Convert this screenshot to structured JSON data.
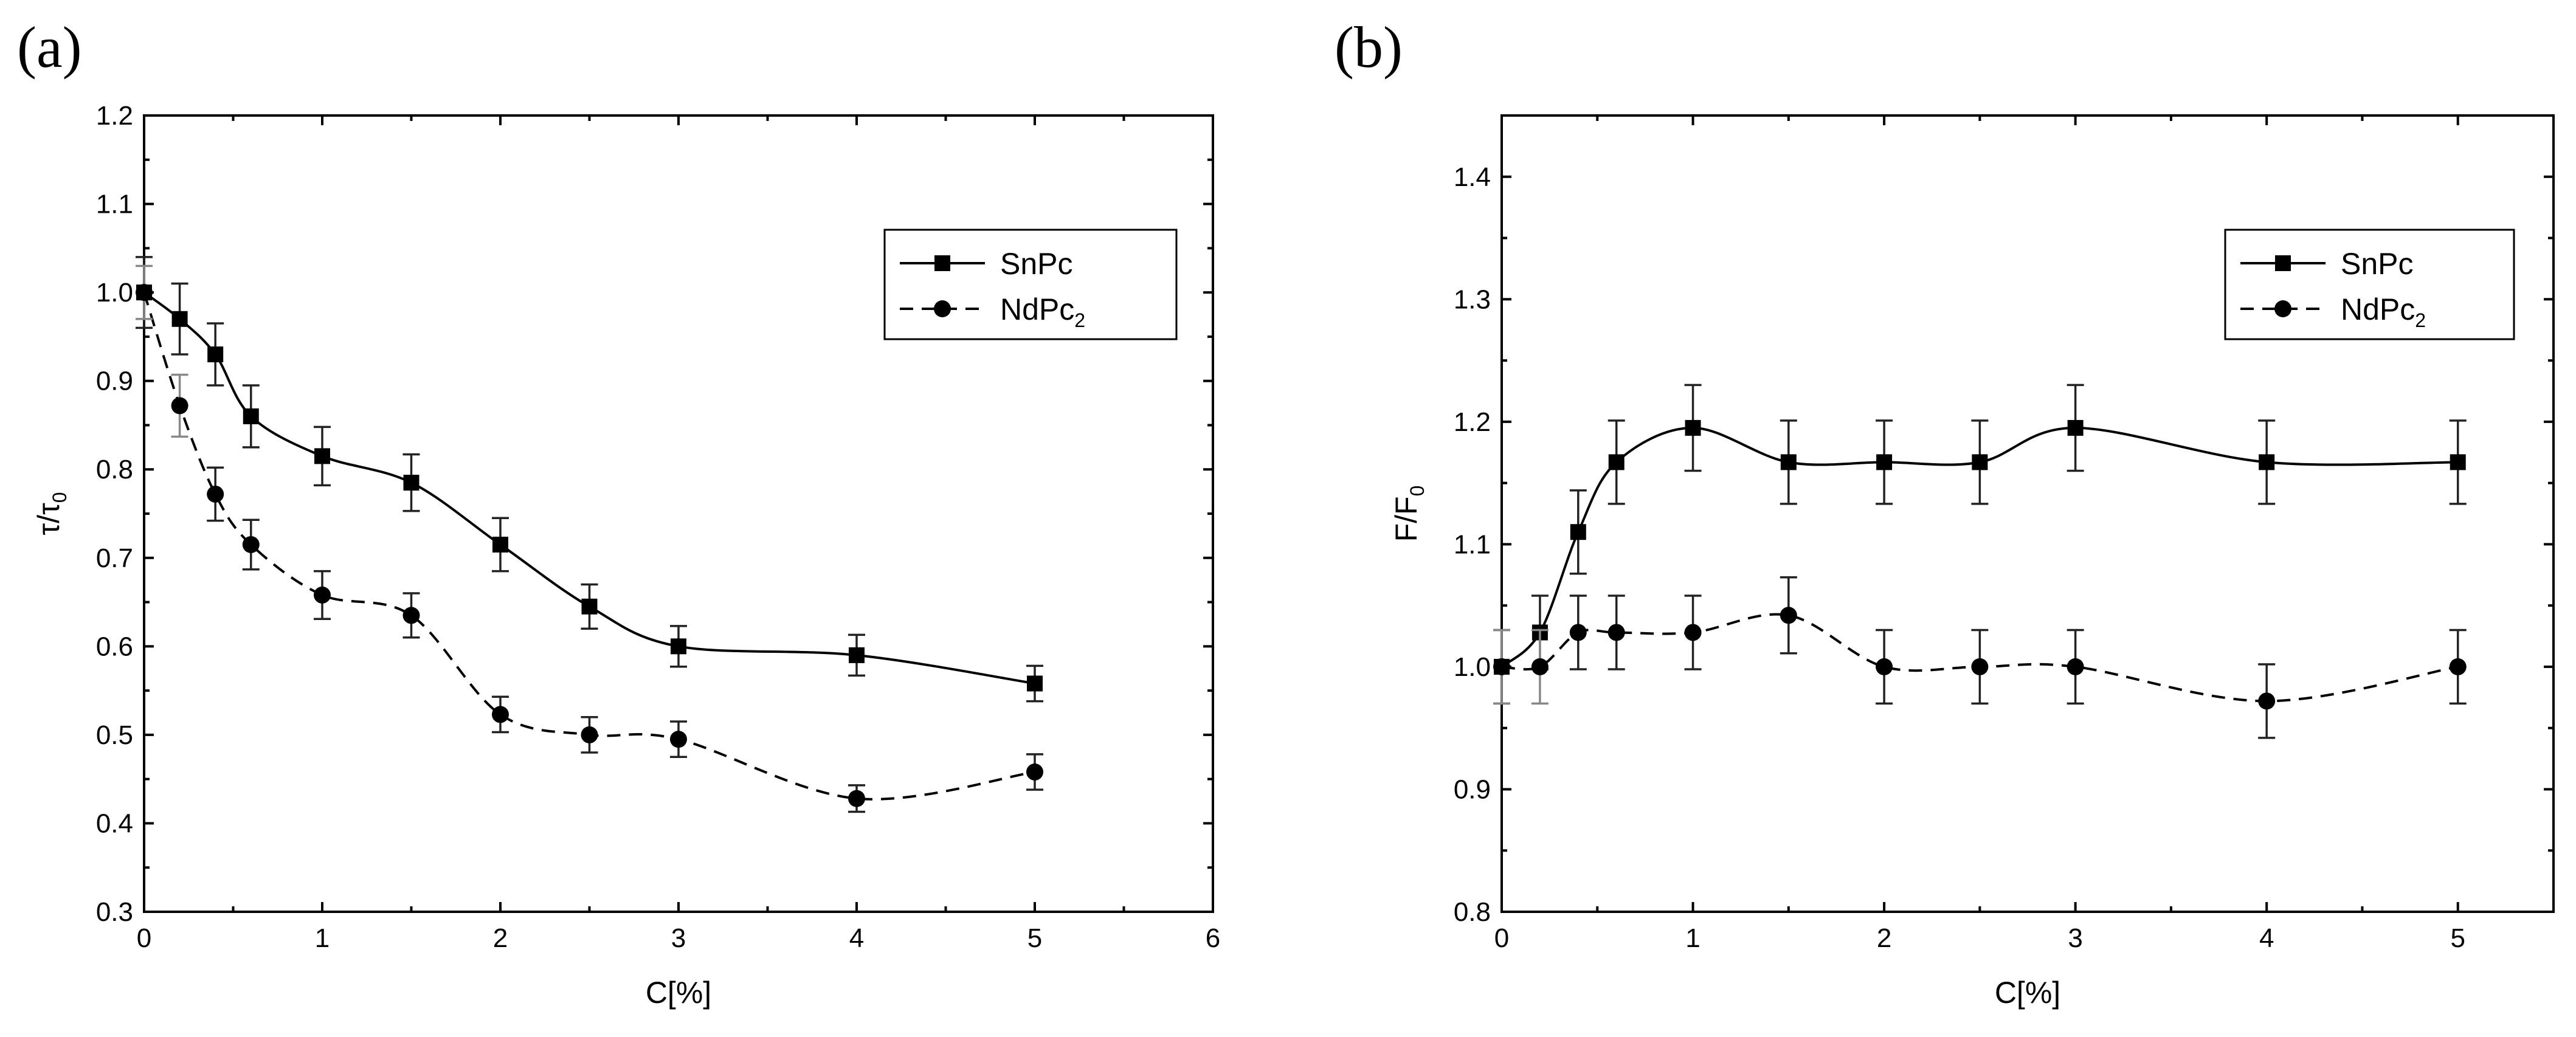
{
  "chart_data": [
    {
      "panel_label": "(a)",
      "type": "line",
      "xlabel": "C[%]",
      "ylabel_main": "τ/τ",
      "ylabel_sub": "0",
      "xlim": [
        0,
        6
      ],
      "ylim": [
        0.3,
        1.2
      ],
      "xticks": [
        0,
        1,
        2,
        3,
        4,
        5,
        6
      ],
      "yticks": [
        0.3,
        0.4,
        0.5,
        0.6,
        0.7,
        0.8,
        0.9,
        1.0,
        1.1,
        1.2
      ],
      "xtick_labels": [
        "0",
        "1",
        "2",
        "3",
        "4",
        "5",
        "6"
      ],
      "ytick_labels": [
        "0.3",
        "0.4",
        "0.5",
        "0.6",
        "0.7",
        "0.8",
        "0.9",
        "1.0",
        "1.1",
        "1.2"
      ],
      "legend_position": "top-right",
      "series": [
        {
          "name": "SnPc",
          "name_sub": "",
          "marker": "square",
          "line": "solid",
          "x": [
            0,
            0.2,
            0.4,
            0.6,
            1,
            1.5,
            2,
            2.5,
            3,
            4,
            5
          ],
          "y": [
            1.0,
            0.97,
            0.93,
            0.86,
            0.815,
            0.785,
            0.715,
            0.645,
            0.6,
            0.59,
            0.558
          ],
          "err": [
            0.04,
            0.04,
            0.035,
            0.035,
            0.033,
            0.032,
            0.03,
            0.025,
            0.023,
            0.023,
            0.02
          ]
        },
        {
          "name": "NdPc",
          "name_sub": "2",
          "marker": "circle",
          "line": "dashed",
          "x": [
            0,
            0.2,
            0.4,
            0.6,
            1,
            1.5,
            2,
            2.5,
            3,
            4,
            5
          ],
          "y": [
            1.0,
            0.872,
            0.772,
            0.715,
            0.658,
            0.635,
            0.523,
            0.5,
            0.495,
            0.428,
            0.458
          ],
          "err": [
            0.03,
            0.035,
            0.03,
            0.028,
            0.027,
            0.025,
            0.02,
            0.02,
            0.02,
            0.015,
            0.02
          ]
        }
      ]
    },
    {
      "panel_label": "(b)",
      "type": "line",
      "xlabel": "C[%]",
      "ylabel_main": "F/F",
      "ylabel_sub": "0",
      "xlim": [
        0,
        5.5
      ],
      "ylim": [
        0.8,
        1.45
      ],
      "xticks": [
        0,
        1,
        2,
        3,
        4,
        5
      ],
      "yticks": [
        0.8,
        0.9,
        1.0,
        1.1,
        1.2,
        1.3,
        1.4
      ],
      "xtick_labels": [
        "0",
        "1",
        "2",
        "3",
        "4",
        "5"
      ],
      "ytick_labels": [
        "0.8",
        "0.9",
        "1.0",
        "1.1",
        "1.2",
        "1.3",
        "1.4"
      ],
      "legend_position": "top-right",
      "series": [
        {
          "name": "SnPc",
          "name_sub": "",
          "marker": "square",
          "line": "solid",
          "x": [
            0,
            0.2,
            0.4,
            0.6,
            1,
            1.5,
            2,
            2.5,
            3,
            4,
            5
          ],
          "y": [
            1.0,
            1.028,
            1.11,
            1.167,
            1.195,
            1.167,
            1.167,
            1.167,
            1.195,
            1.167,
            1.167
          ],
          "err": [
            0.03,
            0.03,
            0.034,
            0.034,
            0.035,
            0.034,
            0.034,
            0.034,
            0.035,
            0.034,
            0.034
          ]
        },
        {
          "name": "NdPc",
          "name_sub": "2",
          "marker": "circle",
          "line": "dashed",
          "x": [
            0,
            0.2,
            0.4,
            0.6,
            1,
            1.5,
            2,
            2.5,
            3,
            4,
            5
          ],
          "y": [
            1.0,
            1.0,
            1.028,
            1.028,
            1.028,
            1.042,
            1.0,
            1.0,
            1.0,
            0.972,
            1.0
          ],
          "err": [
            0.03,
            0.03,
            0.03,
            0.03,
            0.03,
            0.031,
            0.03,
            0.03,
            0.03,
            0.03,
            0.03
          ]
        }
      ]
    }
  ]
}
